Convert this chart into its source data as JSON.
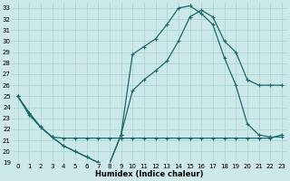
{
  "xlabel": "Humidex (Indice chaleur)",
  "xlim": [
    -0.5,
    23.5
  ],
  "ylim": [
    19,
    33.5
  ],
  "yticks": [
    19,
    20,
    21,
    22,
    23,
    24,
    25,
    26,
    27,
    28,
    29,
    30,
    31,
    32,
    33
  ],
  "xticks": [
    0,
    1,
    2,
    3,
    4,
    5,
    6,
    7,
    8,
    9,
    10,
    11,
    12,
    13,
    14,
    15,
    16,
    17,
    18,
    19,
    20,
    21,
    22,
    23
  ],
  "bg_color": "#cce8e8",
  "grid_color": "#aed4d4",
  "line_color": "#1a6b6b",
  "curve1_x": [
    0,
    1,
    2,
    3,
    4,
    5,
    6,
    7,
    8,
    9,
    10,
    11,
    12,
    13,
    14,
    15,
    16,
    17,
    18,
    19,
    20,
    21,
    22,
    23
  ],
  "curve1_y": [
    25.0,
    23.5,
    22.2,
    21.3,
    20.5,
    20.0,
    19.5,
    19.0,
    18.9,
    21.5,
    28.8,
    29.5,
    30.2,
    31.5,
    33.0,
    33.2,
    32.5,
    31.5,
    28.5,
    26.0,
    22.5,
    21.5,
    21.3,
    21.3
  ],
  "curve2_x": [
    0,
    1,
    2,
    3,
    4,
    5,
    6,
    7,
    8,
    9,
    10,
    11,
    12,
    13,
    14,
    15,
    16,
    17,
    18,
    19,
    20,
    21,
    22,
    23
  ],
  "curve2_y": [
    25.0,
    23.5,
    22.2,
    21.3,
    20.5,
    20.0,
    19.5,
    19.0,
    18.9,
    21.5,
    25.5,
    26.5,
    27.3,
    28.2,
    30.0,
    32.2,
    32.8,
    32.2,
    30.0,
    29.0,
    26.5,
    26.0,
    26.0,
    26.0
  ],
  "curve3_x": [
    0,
    1,
    2,
    3,
    4,
    5,
    6,
    7,
    8,
    9,
    10,
    11,
    12,
    13,
    14,
    15,
    16,
    17,
    18,
    19,
    20,
    21,
    22,
    23
  ],
  "curve3_y": [
    25.0,
    23.3,
    22.2,
    21.3,
    21.2,
    21.2,
    21.2,
    21.2,
    21.2,
    21.2,
    21.2,
    21.2,
    21.2,
    21.2,
    21.2,
    21.2,
    21.2,
    21.2,
    21.2,
    21.2,
    21.2,
    21.2,
    21.2,
    21.5
  ]
}
